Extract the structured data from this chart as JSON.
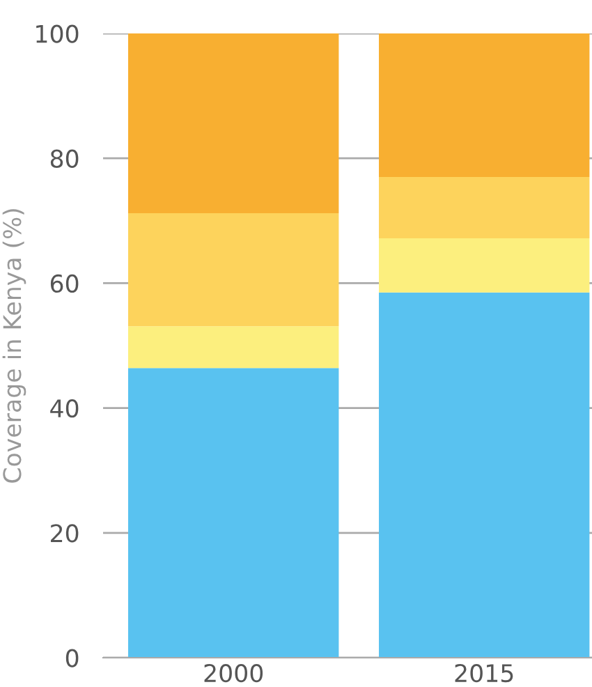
{
  "chart_data": {
    "type": "bar",
    "stacked": true,
    "ylabel": "Coverage in Kenya (%)",
    "categories": [
      "2000",
      "2015"
    ],
    "series": [
      {
        "color": "#59c2f0",
        "values": [
          46.4,
          58.5
        ]
      },
      {
        "color": "#fcef7e",
        "values": [
          6.7,
          8.7
        ]
      },
      {
        "color": "#fdd35c",
        "values": [
          18.1,
          9.8
        ]
      },
      {
        "color": "#f8af31",
        "values": [
          28.8,
          23.0
        ]
      }
    ],
    "ylim": [
      0,
      100
    ],
    "yticks": [
      0,
      20,
      40,
      60,
      80,
      100
    ],
    "grid": "y"
  }
}
